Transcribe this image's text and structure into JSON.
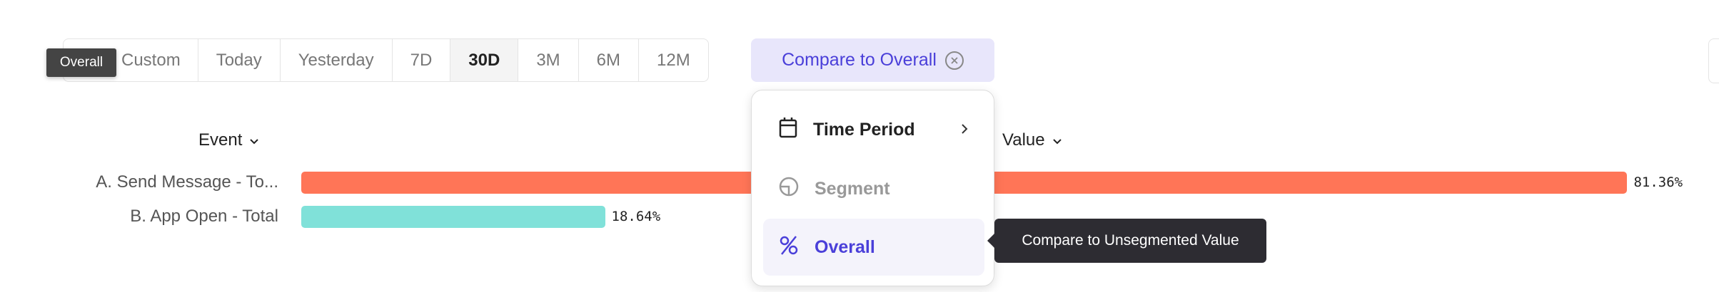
{
  "date_range": {
    "options": [
      "Custom",
      "Today",
      "Yesterday",
      "7D",
      "30D",
      "3M",
      "6M",
      "12M"
    ],
    "selected": "30D"
  },
  "compare_button": {
    "label": "Compare to Overall"
  },
  "hover_tooltip": "Overall",
  "table": {
    "event_header": "Event",
    "value_header": "Value",
    "rows": [
      {
        "label": "A. Send Message - To...",
        "value": 81.36,
        "value_label": "81.36%",
        "color": "#ff7557"
      },
      {
        "label": "B. App Open - Total",
        "value": 18.64,
        "value_label": "18.64%",
        "color": "#80e1d9"
      }
    ]
  },
  "compare_menu": {
    "items": [
      {
        "label": "Time Period",
        "icon": "calendar-icon",
        "has_submenu": true
      },
      {
        "label": "Segment",
        "icon": "segment-pie-icon",
        "disabled": true
      },
      {
        "label": "Overall",
        "icon": "percent-icon",
        "highlighted": true
      }
    ],
    "tooltip": "Compare to Unsegmented Value"
  },
  "colors": {
    "accent": "#4a3fd9",
    "accent_bg": "#e8e6fb"
  }
}
